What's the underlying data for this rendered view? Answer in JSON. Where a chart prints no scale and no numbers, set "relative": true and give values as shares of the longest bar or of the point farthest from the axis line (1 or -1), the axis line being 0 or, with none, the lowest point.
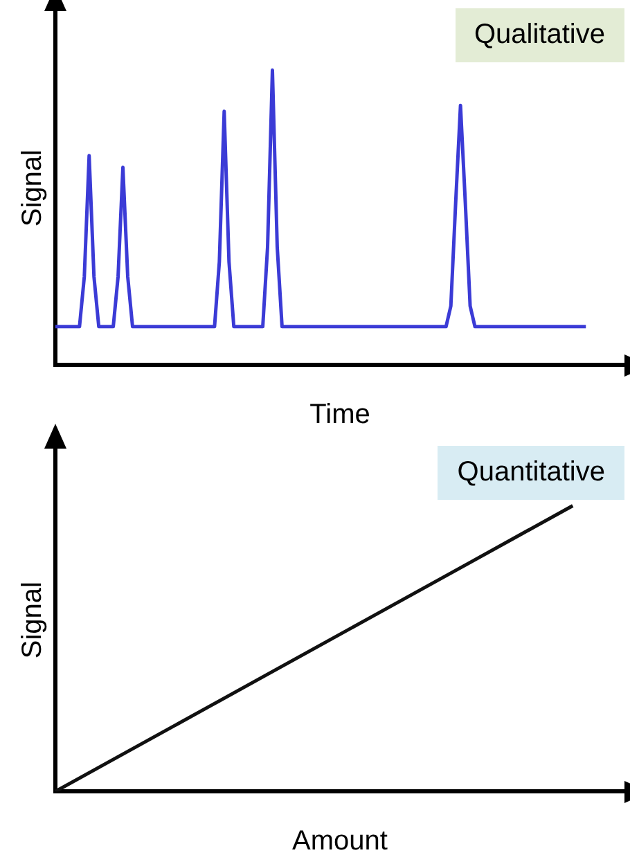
{
  "chart_data": [
    {
      "type": "line",
      "title": "Qualitative",
      "xlabel": "Time",
      "ylabel": "Signal",
      "relative": true,
      "marker": "none",
      "categories": [
        null,
        null,
        null,
        null,
        null,
        null,
        null,
        null,
        null,
        null,
        null,
        null,
        null,
        null,
        null,
        null,
        null,
        null,
        null,
        null,
        null,
        null,
        null,
        null,
        null,
        null,
        null,
        null,
        null,
        null,
        null,
        null,
        null,
        null,
        null,
        null,
        null,
        null,
        null,
        null,
        null,
        null,
        null,
        null,
        null,
        null,
        null,
        null,
        null,
        null,
        null,
        null,
        null,
        null,
        null,
        null,
        null,
        null,
        null,
        null,
        null,
        null,
        null,
        null,
        null,
        null,
        null,
        null,
        null,
        null,
        null,
        null,
        null,
        null,
        null,
        null,
        null,
        null,
        null,
        null,
        null,
        null,
        null,
        null,
        null,
        null,
        null,
        null,
        null,
        null,
        null,
        null,
        null,
        null,
        null,
        null,
        null,
        null,
        null,
        null,
        null,
        null,
        null,
        null,
        null,
        null,
        null,
        null,
        null,
        null,
        null,
        null,
        null,
        null,
        null,
        null,
        null,
        null,
        null
      ],
      "series": [
        {
          "color": "#3b3bd6",
          "values": [
            0.13,
            0.13,
            0.13,
            0.13,
            0.13,
            0.13,
            0.3,
            0.71,
            0.3,
            0.13,
            0.13,
            0.13,
            0.13,
            0.3,
            0.67,
            0.3,
            0.13,
            0.13,
            0.13,
            0.13,
            0.13,
            0.13,
            0.13,
            0.13,
            0.13,
            0.13,
            0.13,
            0.13,
            0.13,
            0.13,
            0.13,
            0.13,
            0.13,
            0.13,
            0.35,
            0.86,
            0.35,
            0.13,
            0.13,
            0.13,
            0.13,
            0.13,
            0.13,
            0.13,
            0.4,
            1,
            0.4,
            0.13,
            0.13,
            0.13,
            0.13,
            0.13,
            0.13,
            0.13,
            0.13,
            0.13,
            0.13,
            0.13,
            0.13,
            0.13,
            0.13,
            0.13,
            0.13,
            0.13,
            0.13,
            0.13,
            0.13,
            0.13,
            0.13,
            0.13,
            0.13,
            0.13,
            0.13,
            0.13,
            0.13,
            0.13,
            0.13,
            0.13,
            0.13,
            0.13,
            0.13,
            0.13,
            0.2,
            0.55,
            0.88,
            0.55,
            0.2,
            0.13,
            0.13,
            0.13,
            0.13,
            0.13,
            0.13,
            0.13,
            0.13,
            0.13,
            0.13,
            0.13,
            0.13,
            0.13,
            0.13,
            0.13,
            0.13,
            0.13,
            0.13,
            0.13,
            0.13,
            0.13,
            0.13,
            0.13,
            0.13,
            null,
            null,
            null,
            null,
            null,
            null,
            null,
            null
          ]
        }
      ]
    },
    {
      "type": "line",
      "title": "Quantitative",
      "xlabel": "Amount",
      "ylabel": "Signal",
      "relative": true,
      "marker": "none",
      "categories": [
        null,
        null,
        null,
        null,
        null,
        null,
        null,
        null,
        null,
        null,
        null,
        null
      ],
      "series": [
        {
          "color": "#111111",
          "values": [
            0,
            0.1,
            0.2,
            0.3,
            0.4,
            0.5,
            0.6,
            0.7,
            0.8,
            0.9,
            1,
            null
          ]
        }
      ]
    }
  ]
}
